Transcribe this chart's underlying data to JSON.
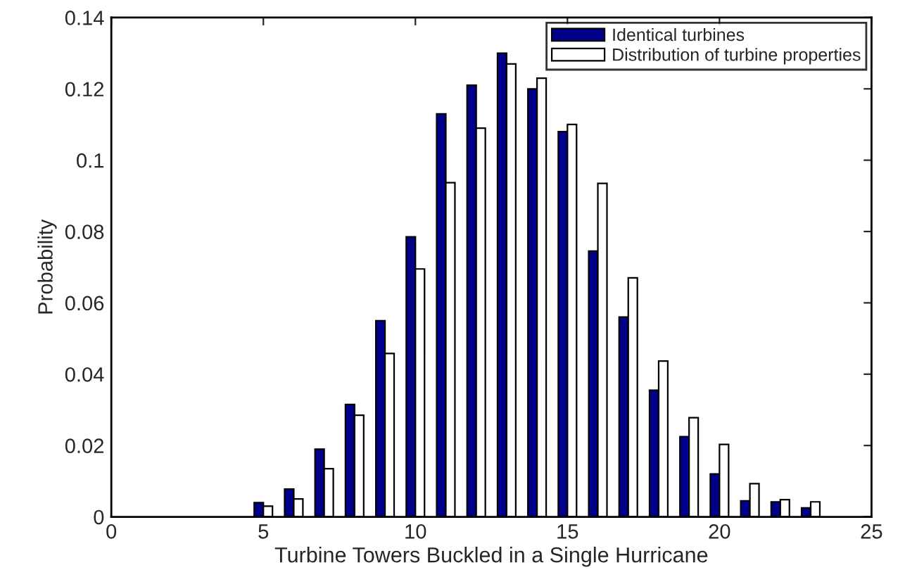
{
  "chart_data": {
    "type": "bar",
    "xlabel": "Turbine Towers Buckled in a Single Hurricane",
    "ylabel": "Probability",
    "x": [
      5,
      6,
      7,
      8,
      9,
      10,
      11,
      12,
      13,
      14,
      15,
      16,
      17,
      18,
      19,
      20,
      21,
      22,
      23
    ],
    "series": [
      {
        "name": "Identical turbines",
        "color": "#00008b",
        "values": [
          0.004,
          0.0078,
          0.019,
          0.0315,
          0.055,
          0.0785,
          0.113,
          0.121,
          0.13,
          0.12,
          0.108,
          0.0745,
          0.056,
          0.0355,
          0.0225,
          0.012,
          0.0045,
          0.0042,
          0.0025
        ]
      },
      {
        "name": "Distribution of turbine properties",
        "color": "#ffffff",
        "values": [
          0.003,
          0.005,
          0.0135,
          0.0285,
          0.0458,
          0.0695,
          0.0937,
          0.109,
          0.127,
          0.123,
          0.11,
          0.0935,
          0.067,
          0.0437,
          0.0278,
          0.0203,
          0.0093,
          0.0048,
          0.0042
        ]
      }
    ],
    "xlim": [
      0,
      25
    ],
    "xticks": [
      0,
      5,
      10,
      15,
      20,
      25
    ],
    "ylim": [
      0,
      0.14
    ],
    "yticks": [
      0,
      0.02,
      0.04,
      0.06,
      0.08,
      0.1,
      0.12,
      0.14
    ],
    "grid": false,
    "legend": "top right"
  }
}
